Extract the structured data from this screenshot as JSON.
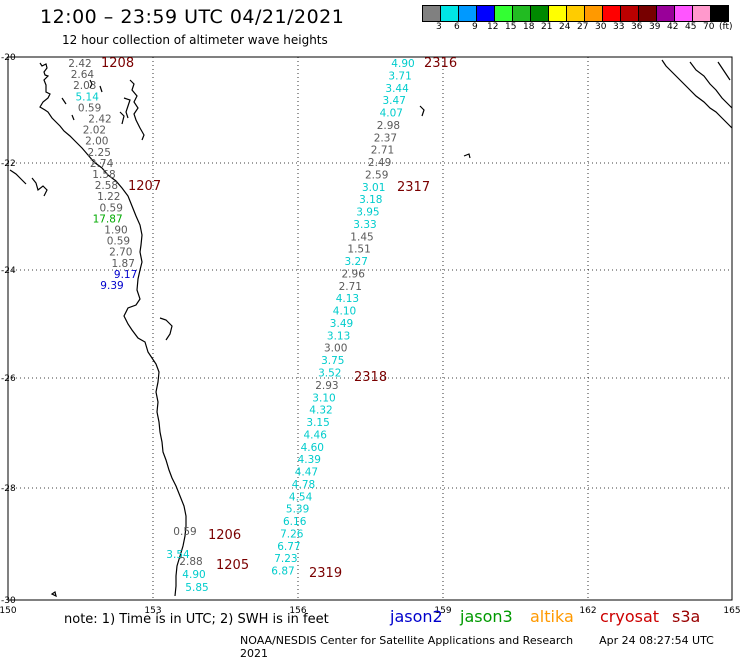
{
  "header": {
    "title": "12:00 – 23:59 UTC 04/21/2021",
    "subtitle": "12 hour collection of altimeter wave heights"
  },
  "legend": {
    "colors": [
      "#808080",
      "#00e5e5",
      "#0099ff",
      "#0000ff",
      "#33ff33",
      "#22bb22",
      "#008800",
      "#ffff00",
      "#ffcc00",
      "#ff9900",
      "#ff0000",
      "#bb0000",
      "#770000",
      "#990099",
      "#ff55ff",
      "#ff99cc",
      "#000000"
    ],
    "labels": [
      "3",
      "6",
      "9",
      "12",
      "15",
      "18",
      "21",
      "24",
      "27",
      "30",
      "33",
      "36",
      "39",
      "42",
      "45",
      "70",
      "(ft)"
    ]
  },
  "axes": {
    "lon_ticks": [
      "150",
      "153",
      "156",
      "159",
      "162",
      "165"
    ],
    "lat_ticks": [
      "-20",
      "-22",
      "-24",
      "-26",
      "-28",
      "-30"
    ]
  },
  "wave_colors": {
    "gray": "#5a5a5a",
    "cyan": "#00cccc",
    "green": "#00aa00",
    "blue": "#0000cc",
    "dark": "#7a0000"
  },
  "tracks": [
    {
      "points": [
        {
          "v": "2.42",
          "c": "gray"
        },
        {
          "v": "2.64",
          "c": "gray"
        },
        {
          "v": "2.03",
          "c": "gray"
        },
        {
          "v": "5.14",
          "c": "cyan"
        },
        {
          "v": "0.59",
          "c": "gray"
        },
        {
          "v": "2.42",
          "c": "gray"
        },
        {
          "v": "2.02",
          "c": "gray"
        },
        {
          "v": "2.00",
          "c": "gray"
        },
        {
          "v": "2.25",
          "c": "gray"
        },
        {
          "v": "2.74",
          "c": "gray"
        },
        {
          "v": "1.58",
          "c": "gray"
        },
        {
          "v": "2.58",
          "c": "gray"
        },
        {
          "v": "1.22",
          "c": "gray"
        },
        {
          "v": "0.59",
          "c": "gray"
        },
        {
          "v": "17.87",
          "c": "green"
        },
        {
          "v": "1.90",
          "c": "gray"
        },
        {
          "v": "0.59",
          "c": "gray"
        },
        {
          "v": "2.70",
          "c": "gray"
        },
        {
          "v": "1.87",
          "c": "gray"
        },
        {
          "v": "9.17",
          "c": "blue"
        },
        {
          "v": "9.39",
          "c": "blue"
        }
      ]
    },
    {
      "points": [
        {
          "v": "4.90",
          "c": "cyan"
        },
        {
          "v": "3.71",
          "c": "cyan"
        },
        {
          "v": "3.44",
          "c": "cyan"
        },
        {
          "v": "3.47",
          "c": "cyan"
        },
        {
          "v": "4.07",
          "c": "cyan"
        },
        {
          "v": "2.98",
          "c": "gray"
        },
        {
          "v": "2.37",
          "c": "gray"
        },
        {
          "v": "2.71",
          "c": "gray"
        },
        {
          "v": "2.49",
          "c": "gray"
        },
        {
          "v": "2.59",
          "c": "gray"
        },
        {
          "v": "3.01",
          "c": "cyan"
        },
        {
          "v": "3.18",
          "c": "cyan"
        },
        {
          "v": "3.95",
          "c": "cyan"
        },
        {
          "v": "3.33",
          "c": "cyan"
        },
        {
          "v": "1.45",
          "c": "gray"
        },
        {
          "v": "1.51",
          "c": "gray"
        },
        {
          "v": "3.27",
          "c": "cyan"
        },
        {
          "v": "2.96",
          "c": "gray"
        },
        {
          "v": "2.71",
          "c": "gray"
        },
        {
          "v": "4.13",
          "c": "cyan"
        },
        {
          "v": "4.10",
          "c": "cyan"
        },
        {
          "v": "3.49",
          "c": "cyan"
        },
        {
          "v": "3.13",
          "c": "cyan"
        },
        {
          "v": "3.00",
          "c": "gray"
        },
        {
          "v": "3.75",
          "c": "cyan"
        },
        {
          "v": "3.52",
          "c": "cyan"
        },
        {
          "v": "2.93",
          "c": "gray"
        },
        {
          "v": "3.10",
          "c": "cyan"
        },
        {
          "v": "4.32",
          "c": "cyan"
        },
        {
          "v": "3.15",
          "c": "cyan"
        },
        {
          "v": "4.46",
          "c": "cyan"
        },
        {
          "v": "4.60",
          "c": "cyan"
        },
        {
          "v": "4.39",
          "c": "cyan"
        },
        {
          "v": "4.47",
          "c": "cyan"
        },
        {
          "v": "4.78",
          "c": "cyan"
        },
        {
          "v": "4.54",
          "c": "cyan"
        },
        {
          "v": "5.39",
          "c": "cyan"
        },
        {
          "v": "6.16",
          "c": "cyan"
        },
        {
          "v": "7.26",
          "c": "cyan"
        },
        {
          "v": "6.77",
          "c": "cyan"
        },
        {
          "v": "7.23",
          "c": "cyan"
        },
        {
          "v": "6.87",
          "c": "cyan"
        }
      ]
    },
    {
      "points": [
        {
          "v": "0.59",
          "c": "gray"
        },
        {
          "v": "3.54",
          "c": "cyan"
        },
        {
          "v": "2.88",
          "c": "gray"
        },
        {
          "v": "4.90",
          "c": "cyan"
        },
        {
          "v": "5.85",
          "c": "cyan"
        }
      ]
    }
  ],
  "time_labels": [
    "1208",
    "1207",
    "2316",
    "2317",
    "2318",
    "1206",
    "1205",
    "2319"
  ],
  "footer": {
    "note": "note: 1) Time is in UTC; 2) SWH is in feet",
    "credit": "NOAA/NESDIS Center for Satellite Applications and Research",
    "timestamp": "Apr 24 08:27:54 UTC 2021",
    "satellites": [
      {
        "name": "jason2",
        "color": "#0000cc"
      },
      {
        "name": "jason3",
        "color": "#009900"
      },
      {
        "name": "altika",
        "color": "#ff9900"
      },
      {
        "name": "cryosat",
        "color": "#cc0000"
      },
      {
        "name": "s3a",
        "color": "#990000"
      }
    ]
  }
}
